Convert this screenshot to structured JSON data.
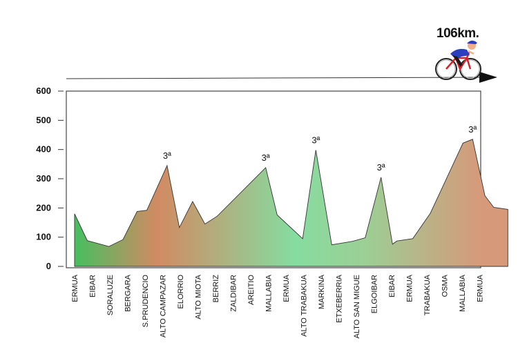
{
  "distance_label": "106km.",
  "colors": {
    "green": "#37c45f",
    "light_green": "#86dca0",
    "terracotta": "#d28a62",
    "tan": "#c9a07a",
    "frame": "#444444",
    "line": "#333333"
  },
  "chart_data": {
    "type": "area",
    "ylim": [
      0,
      600
    ],
    "yticks": [
      0,
      100,
      200,
      300,
      400,
      500,
      600
    ],
    "categories": [
      "ERMUA",
      "EIBAR",
      "SORALUZE",
      "BERGARA",
      "S.PRUDENCIO",
      "ALTO CAMPAZAR",
      "ELORRIO",
      "ALTO MIOTA",
      "BERRIZ",
      "ZALDIBAR",
      "AREITIO",
      "MALLABIA",
      "ERMUA",
      "ALTO TRABAKUA",
      "MARKINA",
      "ETXEBERRIA",
      "ALTO SAN MIGUE",
      "ELGOIBAR",
      "EIBAR",
      "ERMUA",
      "TRABAKUA",
      "OSMA",
      "MALLABIA",
      "ERMUA"
    ],
    "profile": [
      {
        "pos": 0.0,
        "alt": 180
      },
      {
        "pos": 0.72,
        "alt": 88
      },
      {
        "pos": 1.1,
        "alt": 82
      },
      {
        "pos": 1.95,
        "alt": 68
      },
      {
        "pos": 2.75,
        "alt": 92
      },
      {
        "pos": 3.55,
        "alt": 188
      },
      {
        "pos": 4.1,
        "alt": 192
      },
      {
        "pos": 5.25,
        "alt": 345
      },
      {
        "pos": 5.95,
        "alt": 133
      },
      {
        "pos": 6.7,
        "alt": 222
      },
      {
        "pos": 7.4,
        "alt": 145
      },
      {
        "pos": 8.1,
        "alt": 172
      },
      {
        "pos": 10.85,
        "alt": 338
      },
      {
        "pos": 11.5,
        "alt": 176
      },
      {
        "pos": 12.95,
        "alt": 95
      },
      {
        "pos": 13.7,
        "alt": 398
      },
      {
        "pos": 14.6,
        "alt": 74
      },
      {
        "pos": 15.8,
        "alt": 86
      },
      {
        "pos": 16.5,
        "alt": 98
      },
      {
        "pos": 17.4,
        "alt": 305
      },
      {
        "pos": 18.05,
        "alt": 76
      },
      {
        "pos": 18.3,
        "alt": 87
      },
      {
        "pos": 19.2,
        "alt": 95
      },
      {
        "pos": 20.2,
        "alt": 182
      },
      {
        "pos": 22.05,
        "alt": 422
      },
      {
        "pos": 22.6,
        "alt": 435
      },
      {
        "pos": 23.3,
        "alt": 242
      },
      {
        "pos": 23.8,
        "alt": 202
      },
      {
        "pos": 24.6,
        "alt": 195
      }
    ],
    "annotations": [
      {
        "text": "3ª",
        "pos": 5.25,
        "alt": 345
      },
      {
        "text": "3ª",
        "pos": 10.85,
        "alt": 338
      },
      {
        "text": "3ª",
        "pos": 13.7,
        "alt": 398
      },
      {
        "text": "3ª",
        "pos": 17.4,
        "alt": 305
      },
      {
        "text": "3ª",
        "pos": 22.6,
        "alt": 435
      }
    ],
    "grid": false
  }
}
